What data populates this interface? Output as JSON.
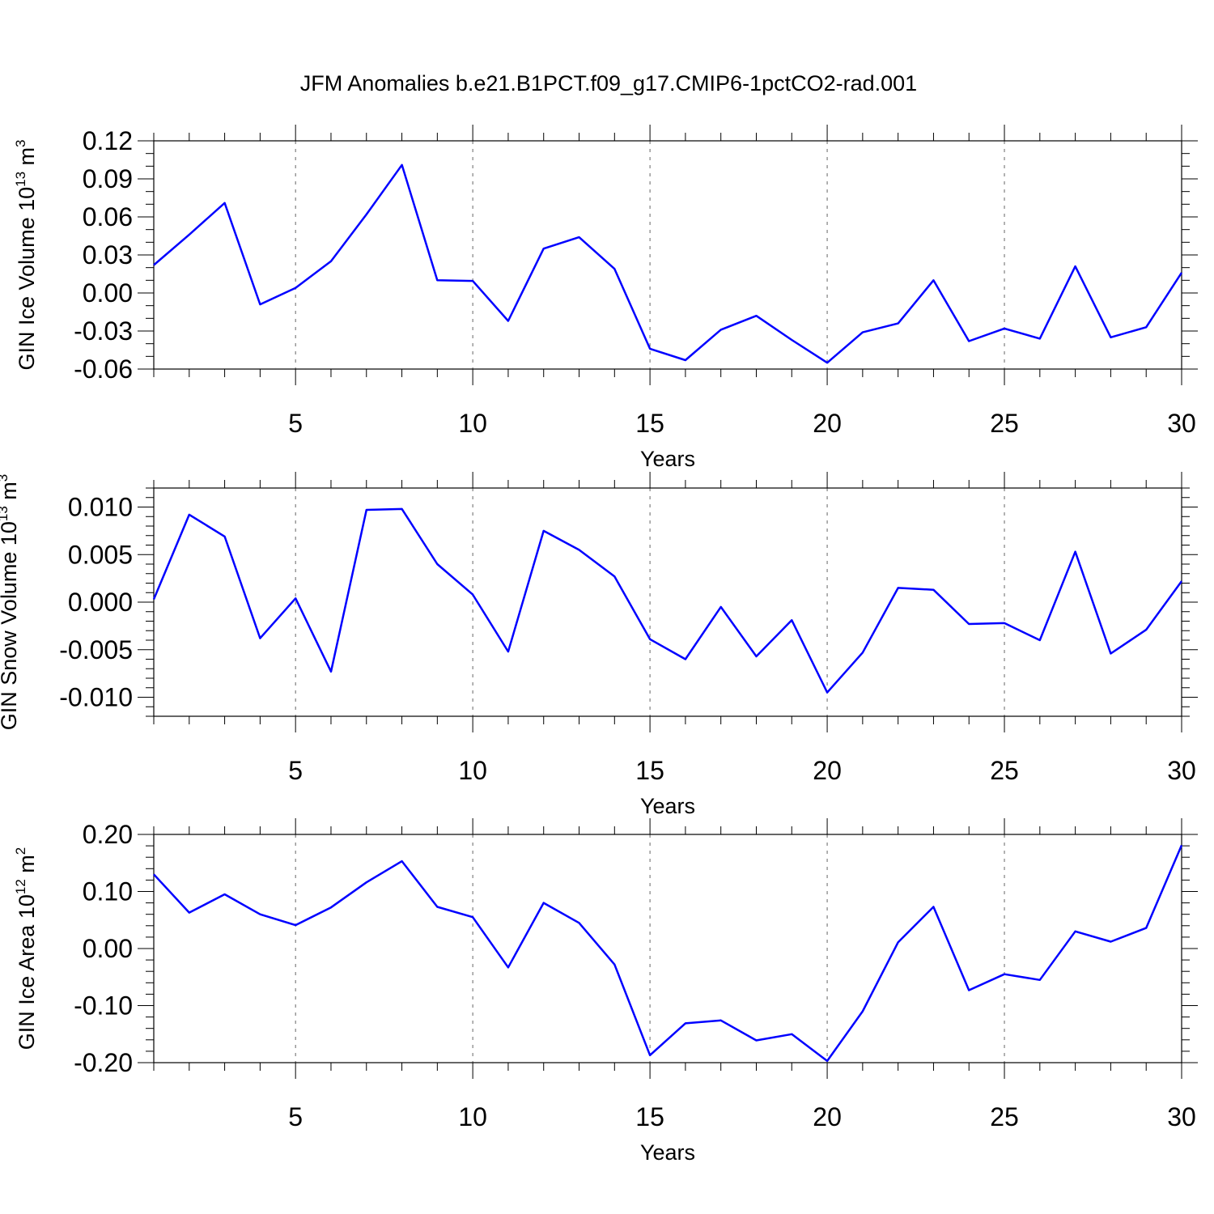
{
  "figure_title": "JFM Anomalies b.e21.B1PCT.f09_g17.CMIP6-1pctCO2-rad.001",
  "chart_data": [
    {
      "type": "line",
      "title": "JFM Anomalies b.e21.B1PCT.f09_g17.CMIP6-1pctCO2-rad.001",
      "xlabel": "Years",
      "ylabel": "GIN Ice Volume 10",
      "ylabel_exp": "13",
      "ylabel_unit": " m",
      "ylabel_unit_exp": "3",
      "xlim": [
        1,
        30
      ],
      "ylim": [
        -0.06,
        0.12
      ],
      "xticks": [
        5,
        10,
        15,
        20,
        25,
        30
      ],
      "xtick_labels": [
        "5",
        "10",
        "15",
        "20",
        "25",
        "30"
      ],
      "yticks": [
        0.12,
        0.09,
        0.06,
        0.03,
        0.0,
        -0.03,
        -0.06
      ],
      "ytick_labels": [
        "0.12",
        "0.09",
        "0.06",
        "0.03",
        "0.00",
        "-0.03",
        "-0.06"
      ],
      "y_minor_step": 0.01,
      "grid_x": [
        5,
        10,
        15,
        20,
        25
      ],
      "color": "#0000ff",
      "x": [
        1,
        2,
        3,
        4,
        5,
        6,
        7,
        8,
        9,
        10,
        11,
        12,
        13,
        14,
        15,
        16,
        17,
        18,
        19,
        20,
        21,
        22,
        23,
        24,
        25,
        26,
        27,
        28,
        29,
        30
      ],
      "values": [
        0.022,
        0.046,
        0.071,
        -0.009,
        0.004,
        0.025,
        0.062,
        0.101,
        0.01,
        0.0095,
        -0.022,
        0.035,
        0.044,
        0.019,
        -0.044,
        -0.053,
        -0.029,
        -0.018,
        -0.037,
        -0.055,
        -0.031,
        -0.024,
        0.01,
        -0.038,
        -0.028,
        -0.036,
        0.021,
        -0.035,
        -0.027,
        0.016
      ]
    },
    {
      "type": "line",
      "xlabel": "Years",
      "ylabel": "GIN Snow Volume 10",
      "ylabel_exp": "13",
      "ylabel_unit": " m",
      "ylabel_unit_exp": "3",
      "xlim": [
        1,
        30
      ],
      "ylim": [
        -0.012,
        0.012
      ],
      "xticks": [
        5,
        10,
        15,
        20,
        25,
        30
      ],
      "xtick_labels": [
        "5",
        "10",
        "15",
        "20",
        "25",
        "30"
      ],
      "yticks": [
        0.01,
        0.005,
        0.0,
        -0.005,
        -0.01
      ],
      "ytick_labels": [
        "0.010",
        "0.005",
        "0.000",
        "-0.005",
        "-0.010"
      ],
      "y_minor_step": 0.001,
      "grid_x": [
        5,
        10,
        15,
        20,
        25
      ],
      "color": "#0000ff",
      "x": [
        1,
        2,
        3,
        4,
        5,
        6,
        7,
        8,
        9,
        10,
        11,
        12,
        13,
        14,
        15,
        16,
        17,
        18,
        19,
        20,
        21,
        22,
        23,
        24,
        25,
        26,
        27,
        28,
        29,
        30
      ],
      "values": [
        0.0003,
        0.0092,
        0.0069,
        -0.0038,
        0.0004,
        -0.0073,
        0.0097,
        0.0098,
        0.004,
        0.0008,
        -0.0052,
        0.0075,
        0.0055,
        0.0027,
        -0.0039,
        -0.006,
        -0.0005,
        -0.0057,
        -0.0019,
        -0.0095,
        -0.0053,
        0.0015,
        0.0013,
        -0.0023,
        -0.0022,
        -0.004,
        0.0053,
        -0.0054,
        -0.0029,
        0.0022
      ]
    },
    {
      "type": "line",
      "xlabel": "Years",
      "ylabel": "GIN Ice Area 10",
      "ylabel_exp": "12",
      "ylabel_unit": " m",
      "ylabel_unit_exp": "2",
      "xlim": [
        1,
        30
      ],
      "ylim": [
        -0.2,
        0.2
      ],
      "xticks": [
        5,
        10,
        15,
        20,
        25,
        30
      ],
      "xtick_labels": [
        "5",
        "10",
        "15",
        "20",
        "25",
        "30"
      ],
      "yticks": [
        0.2,
        0.1,
        0.0,
        -0.1,
        -0.2
      ],
      "ytick_labels": [
        "0.20",
        "0.10",
        "0.00",
        "-0.10",
        "-0.20"
      ],
      "y_minor_step": 0.02,
      "grid_x": [
        5,
        10,
        15,
        20,
        25
      ],
      "color": "#0000ff",
      "x": [
        1,
        2,
        3,
        4,
        5,
        6,
        7,
        8,
        9,
        10,
        11,
        12,
        13,
        14,
        15,
        16,
        17,
        18,
        19,
        20,
        21,
        22,
        23,
        24,
        25,
        26,
        27,
        28,
        29,
        30
      ],
      "values": [
        0.13,
        0.063,
        0.095,
        0.06,
        0.041,
        0.072,
        0.116,
        0.153,
        0.073,
        0.055,
        -0.033,
        0.08,
        0.045,
        -0.028,
        -0.187,
        -0.131,
        -0.126,
        -0.161,
        -0.15,
        -0.197,
        -0.11,
        0.011,
        0.073,
        -0.073,
        -0.045,
        -0.055,
        0.03,
        0.012,
        0.036,
        0.181
      ]
    }
  ]
}
